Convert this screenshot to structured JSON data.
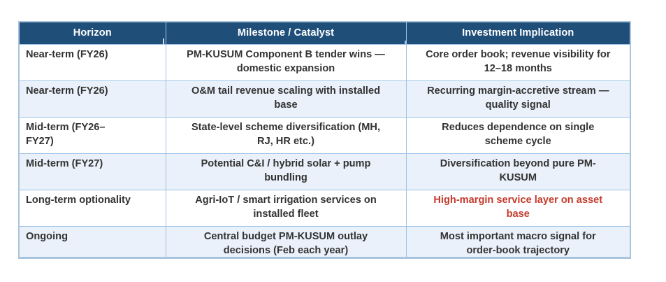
{
  "table": {
    "title_semantic": "Horizon / Milestone / Investment Implication matrix",
    "columns": [
      {
        "key": "horizon",
        "label": "Horizon"
      },
      {
        "key": "milestone",
        "label": "Milestone / Catalyst"
      },
      {
        "key": "implication",
        "label": "Investment Implication"
      }
    ],
    "rows": [
      {
        "horizon": "Near-term (FY26)",
        "milestone": "PM-KUSUM Component B tender wins —\ndomestic expansion",
        "implication": "Core order book; revenue visibility for\n12–18 months"
      },
      {
        "horizon": "Near-term (FY26)",
        "milestone": "O&M tail revenue scaling with installed\nbase",
        "implication": "Recurring margin-accretive stream —\nquality signal"
      },
      {
        "horizon": "Mid-term (FY26–\nFY27)",
        "milestone": "State-level scheme diversification (MH,\nRJ, HR etc.)",
        "implication": "Reduces dependence on single\nscheme cycle"
      },
      {
        "horizon": "Mid-term (FY27)",
        "milestone": "Potential C&I / hybrid solar + pump\nbundling",
        "implication": "Diversification beyond pure PM-\nKUSUM"
      },
      {
        "horizon": "Long-term optionality",
        "milestone": "Agri-IoT / smart irrigation services on\ninstalled fleet",
        "implication": "High-margin service layer on asset\nbase",
        "implication_emphasis": true
      },
      {
        "horizon": "Ongoing",
        "milestone": "Central budget PM-KUSUM outlay\ndecisions (Feb each year)",
        "implication": "Most important macro signal for\norder-book trajectory"
      }
    ],
    "colors": {
      "header_background": "#1f4e79",
      "header_text": "#ffffff",
      "body_text": "#333333",
      "emphasis_text": "#c5392c",
      "banded_row_background": "#eaf1fa",
      "grid_border": "#9dc3e6",
      "outer_border": "#a9c4df",
      "page_background": "#ffffff"
    }
  }
}
